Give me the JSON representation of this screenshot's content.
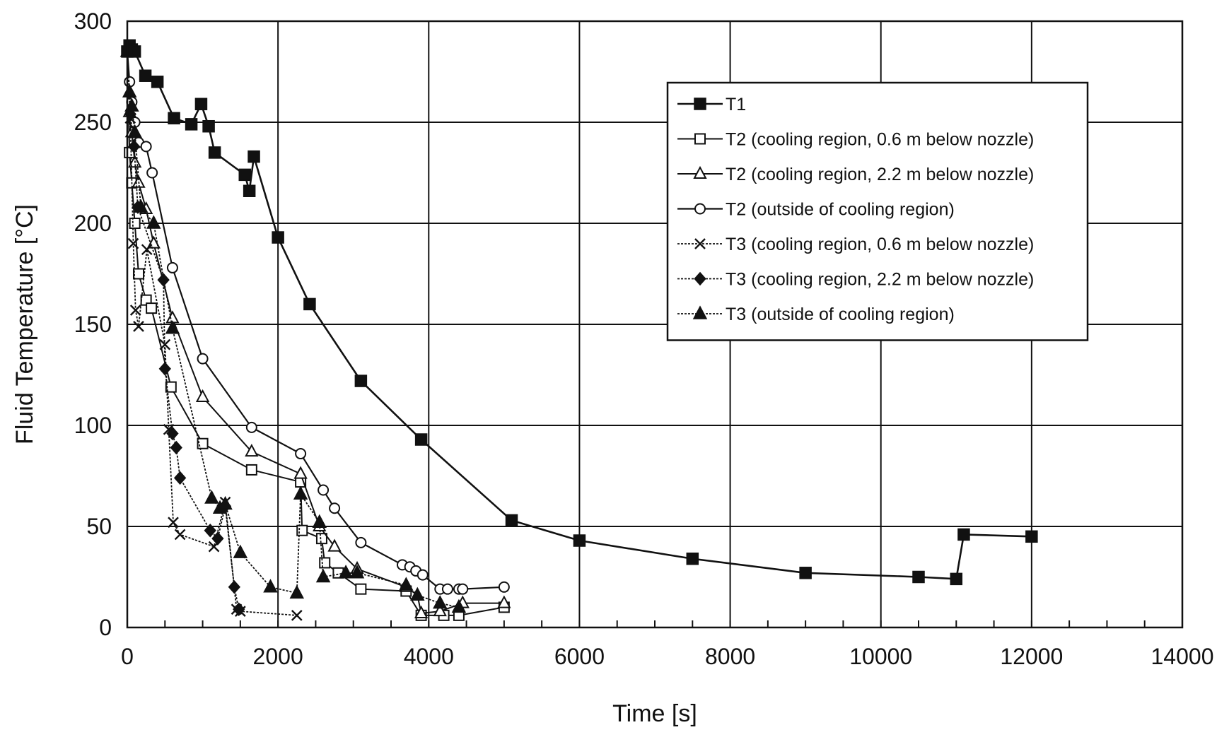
{
  "chart_data": {
    "type": "line",
    "title": "",
    "xlabel": "Time [s]",
    "ylabel": "Fluid Temperature [°C]",
    "xlim": [
      0,
      14000
    ],
    "ylim": [
      0,
      300
    ],
    "x_ticks": [
      0,
      2000,
      4000,
      6000,
      8000,
      10000,
      12000,
      14000
    ],
    "y_ticks": [
      0,
      50,
      100,
      150,
      200,
      250,
      300
    ],
    "grid": true,
    "legend_position": "top-right",
    "series": [
      {
        "name": "T1",
        "marker": "square-filled",
        "x": [
          0,
          30,
          60,
          100,
          240,
          400,
          620,
          850,
          980,
          1080,
          1160,
          1560,
          1620,
          1680,
          2000,
          2420,
          3100,
          3900,
          5100,
          6000,
          7500,
          9000,
          10500,
          11000,
          11100,
          12000
        ],
        "y": [
          285,
          288,
          286,
          285,
          273,
          270,
          252,
          249,
          259,
          248,
          235,
          224,
          216,
          233,
          193,
          160,
          122,
          93,
          53,
          43,
          34,
          27,
          25,
          24,
          46,
          45
        ]
      },
      {
        "name": "T2 (cooling region, 0.6 m below nozzle)",
        "marker": "square-open",
        "x": [
          0,
          30,
          60,
          100,
          150,
          250,
          320,
          580,
          1000,
          1650,
          2300,
          2320,
          2580,
          2620,
          2800,
          3100,
          3700,
          3900,
          4200,
          4400,
          5000
        ],
        "y": [
          285,
          235,
          220,
          200,
          175,
          162,
          158,
          119,
          91,
          78,
          72,
          48,
          44,
          32,
          27,
          19,
          18,
          6,
          6,
          6,
          10
        ]
      },
      {
        "name": "T2 (cooling region, 2.2 m below nozzle)",
        "marker": "triangle-open",
        "x": [
          0,
          30,
          60,
          100,
          150,
          250,
          350,
          600,
          1000,
          1650,
          2300,
          2550,
          2750,
          3050,
          3700,
          3850,
          3900,
          4150,
          4450,
          5000
        ],
        "y": [
          285,
          255,
          245,
          230,
          220,
          207,
          190,
          153,
          114,
          87,
          76,
          50,
          40,
          29,
          20,
          16,
          7,
          8,
          12,
          12
        ]
      },
      {
        "name": "T2 (outside of cooling region)",
        "marker": "circle-open",
        "x": [
          0,
          30,
          60,
          100,
          150,
          250,
          330,
          600,
          1000,
          1650,
          2300,
          2600,
          2750,
          3100,
          3650,
          3750,
          3830,
          3920,
          4150,
          4250,
          4400,
          4450,
          5000
        ],
        "y": [
          285,
          270,
          260,
          250,
          240,
          238,
          225,
          178,
          133,
          99,
          86,
          68,
          59,
          42,
          31,
          30,
          28,
          26,
          19,
          19,
          19,
          19,
          20
        ]
      },
      {
        "name": "T3 (cooling region, 0.6 m below nozzle)",
        "marker": "x",
        "x": [
          0,
          40,
          80,
          110,
          150,
          260,
          500,
          550,
          610,
          700,
          1150,
          1300,
          1450,
          1500,
          2250
        ],
        "y": [
          285,
          252,
          190,
          157,
          149,
          187,
          140,
          98,
          52,
          46,
          40,
          62,
          9,
          8,
          6
        ]
      },
      {
        "name": "T3 (cooling region, 2.2 m below nozzle)",
        "marker": "diamond-filled",
        "x": [
          0,
          40,
          90,
          140,
          480,
          500,
          600,
          650,
          700,
          1100,
          1200,
          1300,
          1420,
          1480
        ],
        "y": [
          285,
          254,
          238,
          208,
          172,
          128,
          96,
          89,
          74,
          48,
          44,
          60,
          20,
          9
        ]
      },
      {
        "name": "T3 (outside of cooling region)",
        "marker": "triangle-filled",
        "x": [
          0,
          30,
          60,
          100,
          180,
          350,
          600,
          1120,
          1230,
          1300,
          1500,
          1900,
          2250,
          2300,
          2550,
          2600,
          2900,
          3050,
          3700,
          3850,
          4150,
          4400
        ],
        "y": [
          285,
          265,
          258,
          245,
          208,
          200,
          148,
          64,
          59,
          61,
          37,
          20,
          17,
          66,
          52,
          25,
          27,
          27,
          21,
          16,
          12,
          10
        ]
      }
    ]
  }
}
